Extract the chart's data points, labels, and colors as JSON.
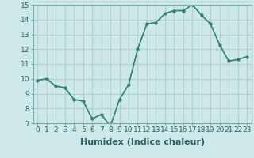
{
  "x": [
    0,
    1,
    2,
    3,
    4,
    5,
    6,
    7,
    8,
    9,
    10,
    11,
    12,
    13,
    14,
    15,
    16,
    17,
    18,
    19,
    20,
    21,
    22,
    23
  ],
  "y": [
    9.9,
    10.0,
    9.5,
    9.4,
    8.6,
    8.5,
    7.3,
    7.6,
    6.8,
    8.6,
    9.6,
    12.0,
    13.7,
    13.8,
    14.4,
    14.6,
    14.6,
    15.0,
    14.3,
    13.7,
    12.3,
    11.2,
    11.3,
    11.5
  ],
  "xlabel": "Humidex (Indice chaleur)",
  "ylim": [
    7,
    15
  ],
  "xlim": [
    -0.5,
    23.5
  ],
  "yticks": [
    7,
    8,
    9,
    10,
    11,
    12,
    13,
    14,
    15
  ],
  "xticks": [
    0,
    1,
    2,
    3,
    4,
    5,
    6,
    7,
    8,
    9,
    10,
    11,
    12,
    13,
    14,
    15,
    16,
    17,
    18,
    19,
    20,
    21,
    22,
    23
  ],
  "line_color": "#2d7f6e",
  "marker_color": "#2d7f6e",
  "bg_color": "#cde8e8",
  "grid_color": "#b0d0d0",
  "tick_label_fontsize": 6.5,
  "xlabel_fontsize": 8,
  "line_width": 1.2,
  "marker_size": 2.5
}
